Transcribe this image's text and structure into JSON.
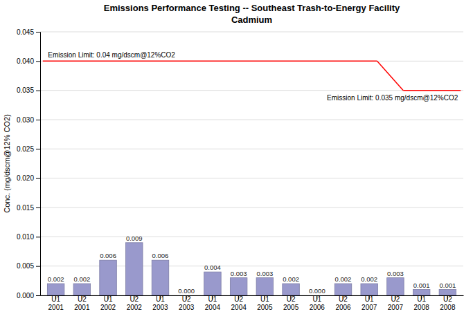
{
  "chart_data": {
    "type": "bar",
    "title": "Emissions Performance Testing -- Southeast Trash-to-Energy Facility",
    "subtitle": "Cadmium",
    "ylabel": "Conc. (mg/dscm@12% CO2)",
    "categories": [
      "U1\n2001",
      "U2\n2001",
      "U1\n2002",
      "U2\n2002",
      "U1\n2003",
      "U2\n2003",
      "U1\n2004",
      "U2\n2004",
      "U1\n2005",
      "U2\n2005",
      "U1\n2006",
      "U2\n2006",
      "U1\n2007",
      "U2\n2007",
      "U1\n2008",
      "U2\n2008"
    ],
    "values": [
      0.002,
      0.002,
      0.006,
      0.009,
      0.006,
      0.0,
      0.004,
      0.003,
      0.003,
      0.002,
      0.0,
      0.002,
      0.002,
      0.003,
      0.001,
      0.001
    ],
    "value_labels": [
      "0.002",
      "0.002",
      "0.006",
      "0.009",
      "0.006",
      "0.000",
      "0.004",
      "0.003",
      "0.003",
      "0.002",
      "0.000",
      "0.002",
      "0.002",
      "0.003",
      "0.001",
      "0.001"
    ],
    "data_labels": true,
    "color": "#9999cc",
    "ylim": [
      0,
      0.045
    ],
    "yticks": [
      {
        "value": 0,
        "label": "0.000"
      },
      0.005,
      {
        "value": 0.01,
        "label": "0.010"
      },
      0.015,
      {
        "value": 0.02,
        "label": "0.020"
      },
      0.025,
      {
        "value": 0.03,
        "label": "0.030"
      },
      0.035,
      {
        "value": 0.04,
        "label": "0.040"
      },
      0.045
    ],
    "grid": true,
    "limits": [
      {
        "value": 0.04,
        "label": "Emission Limit: 0.04 mg/dscm@12%CO2",
        "color": "red",
        "from": "U1\n2001",
        "to": "U1\n2007"
      },
      {
        "value": 0.035,
        "label": "Emission Limit: 0.035 mg/dscm@12%CO2",
        "color": "red",
        "from": "U2\n2007",
        "to": "U2\n2008"
      }
    ]
  }
}
